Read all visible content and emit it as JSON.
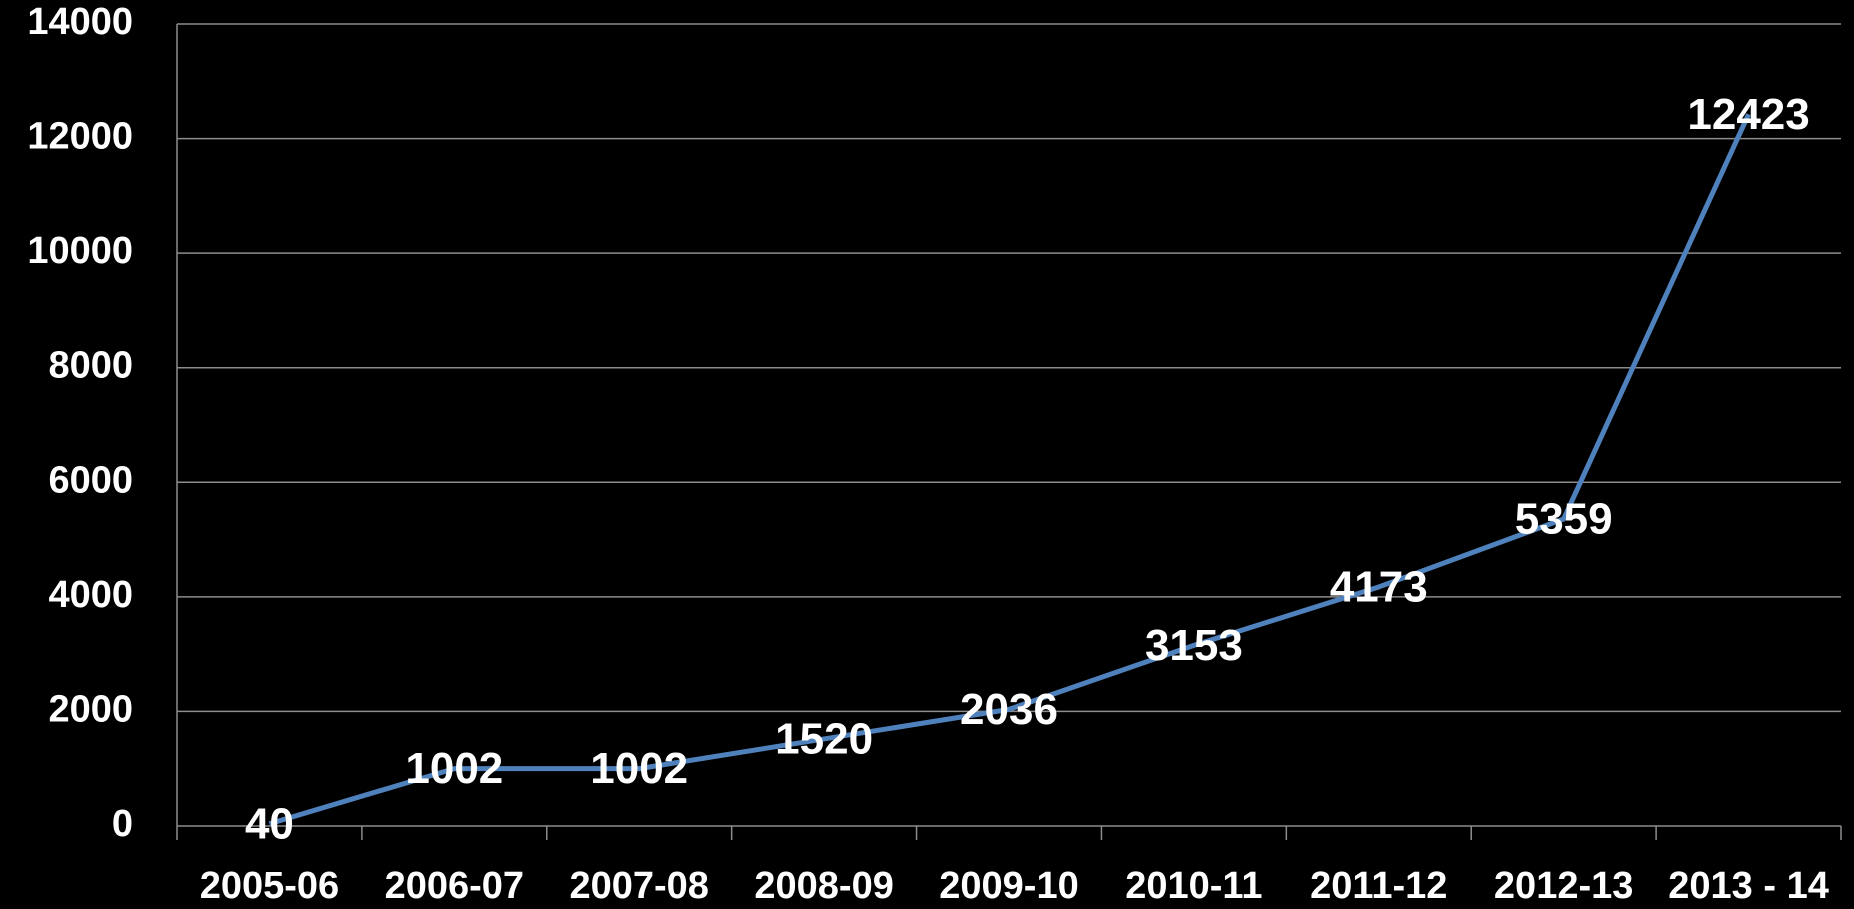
{
  "chart_data": {
    "type": "line",
    "categories": [
      "2005-06",
      "2006-07",
      "2007-08",
      "2008-09",
      "2009-10",
      "2010-11",
      "2011-12",
      "2012-13",
      "2013 - 14"
    ],
    "values": [
      40,
      1002,
      1002,
      1520,
      2036,
      3153,
      4173,
      5359,
      12423
    ],
    "color": "#4f81bd",
    "ylim": [
      0,
      14000
    ],
    "yticks": [
      0,
      2000,
      4000,
      6000,
      8000,
      10000,
      12000,
      14000
    ],
    "grid": true
  }
}
